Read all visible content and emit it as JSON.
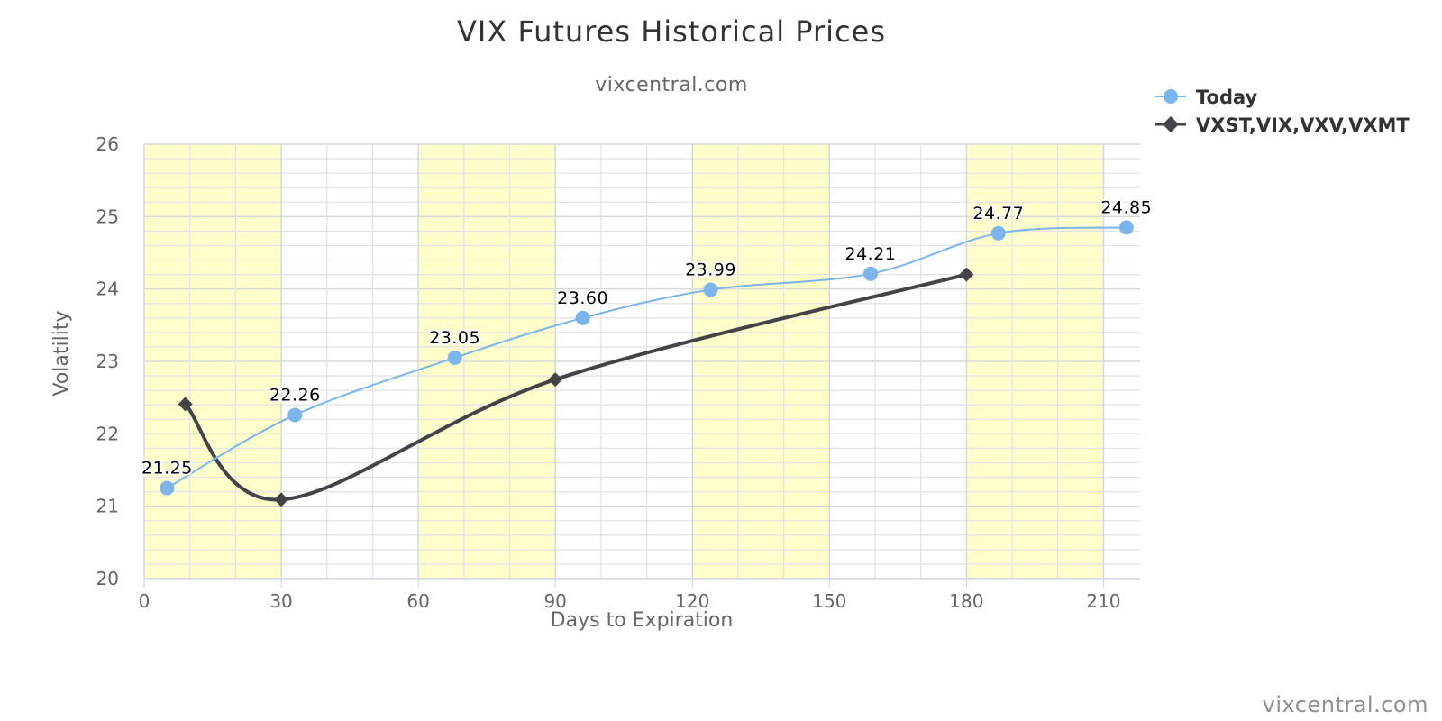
{
  "chart_data": {
    "type": "line",
    "title": "VIX Futures Historical Prices",
    "subtitle": "vixcentral.com",
    "xlabel": "Days to Expiration",
    "ylabel": "Volatility",
    "xlim": [
      0,
      218
    ],
    "ylim": [
      20,
      26
    ],
    "x_ticks": [
      0,
      30,
      60,
      90,
      120,
      150,
      180,
      210
    ],
    "y_ticks": [
      20,
      21,
      22,
      23,
      24,
      25,
      26
    ],
    "grid": true,
    "legend_position": "top-right",
    "band_color": "#FFFFCC",
    "series": [
      {
        "name": "Today",
        "color": "#7CB5EC",
        "marker": "circle",
        "data_labels": true,
        "x": [
          5,
          33,
          68,
          96,
          124,
          159,
          187,
          215
        ],
        "y": [
          21.25,
          22.26,
          23.05,
          23.6,
          23.99,
          24.21,
          24.77,
          24.85
        ],
        "labels": [
          "21.25",
          "22.26",
          "23.05",
          "23.60",
          "23.99",
          "24.21",
          "24.77",
          "24.85"
        ]
      },
      {
        "name": "VXST,VIX,VXV,VXMT",
        "color": "#434348",
        "marker": "diamond",
        "data_labels": false,
        "x": [
          9,
          30,
          90,
          180
        ],
        "y": [
          22.41,
          21.09,
          22.75,
          24.2
        ]
      }
    ]
  },
  "credit": "vixcentral.com"
}
